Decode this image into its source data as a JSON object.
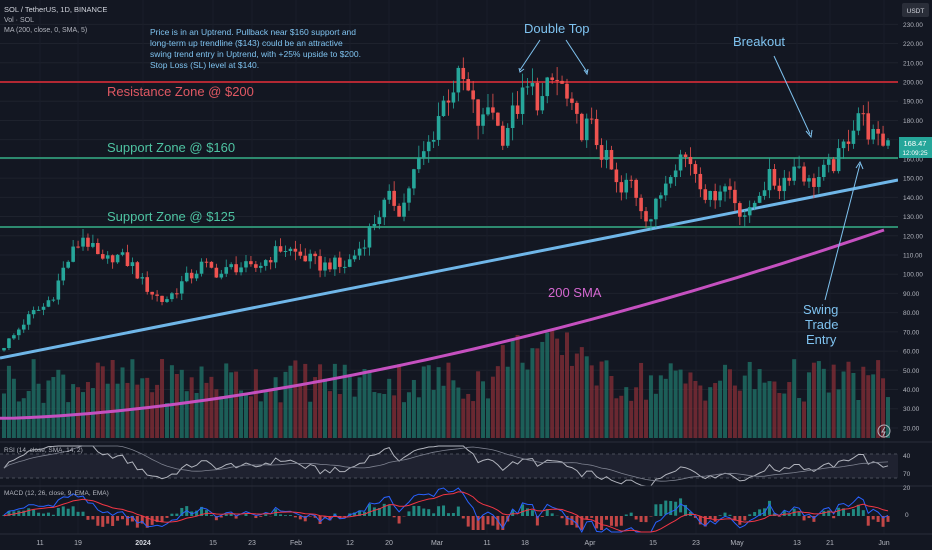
{
  "header": {
    "symbol_line": "SOL / TetherUS, 1D, BINANCE",
    "volume_line": "Vol · SOL",
    "ma_line": "MA (200, close, 0, SMA, 5)",
    "currency": "USDT"
  },
  "annotation_note": {
    "lines": [
      "Price is in an Uptrend. Pullback near $160 support and",
      "long-term up trendline ($143) could be an attractive",
      "swing trend entry in Uptrend, with +25% upside to $200.",
      "Stop Loss (SL) level at $140."
    ]
  },
  "labels": {
    "double_top": "Double Top",
    "breakout": "Breakout",
    "resistance_200": "Resistance Zone @ $200",
    "support_160": "Support Zone @ $160",
    "support_125": "Support Zone @ $125",
    "sma_200": "200 SMA",
    "swing_entry": [
      "Swing",
      "Trade",
      "Entry"
    ]
  },
  "price_badge": {
    "price": "168.47",
    "countdown": "12:09:25"
  },
  "indicators": {
    "rsi_label": "RSI (14, close, SMA, 14, 2)",
    "macd_label": "MACD (12, 26, close, 9, EMA, EMA)"
  },
  "colors": {
    "background": "#131722",
    "up": "#26a69a",
    "down": "#ef5350",
    "resistance": "#b22833",
    "support": "#2d8a6f",
    "trendline": "#6fb6e8",
    "sma": "#c550c0",
    "annotation_text": "#7fc3f0",
    "rsi_line": "#b2b5be",
    "macd_line": "#2962ff",
    "signal_line": "#f23645"
  },
  "chart_data": {
    "type": "candlestick",
    "price_axis": {
      "ticks": [
        20,
        30,
        40,
        50,
        60,
        70,
        80,
        90,
        100,
        110,
        120,
        130,
        140,
        150,
        160,
        170,
        180,
        190,
        200,
        210,
        220,
        230
      ],
      "ylim": [
        15,
        240
      ]
    },
    "x_axis_labels": [
      "11",
      "19",
      "2024",
      "15",
      "23",
      "Feb",
      "12",
      "20",
      "Mar",
      "11",
      "18",
      "Apr",
      "15",
      "23",
      "May",
      "13",
      "21",
      "Jun"
    ],
    "horizontal_levels": [
      {
        "name": "Resistance Zone @ $200",
        "value": 200
      },
      {
        "name": "Support Zone @ $160",
        "value": 160
      },
      {
        "name": "Support Zone @ $125",
        "value": 125
      }
    ],
    "trendline": {
      "from_value": 56,
      "to_value": 150
    },
    "sma_200": {
      "from_value": 25,
      "to_value": 123
    },
    "rsi": {
      "ticks": [
        40.0,
        70.0
      ]
    },
    "macd": {
      "ticks": [
        20.0,
        0.0
      ]
    },
    "close_points": [
      [
        60,
        63
      ],
      [
        62,
        68
      ],
      [
        62,
        75
      ],
      [
        64,
        80
      ],
      [
        63,
        83
      ],
      [
        65,
        90
      ],
      [
        64,
        103
      ],
      [
        66,
        112
      ],
      [
        68,
        120
      ],
      [
        64,
        112
      ],
      [
        67,
        105
      ],
      [
        68,
        110
      ],
      [
        70,
        108
      ],
      [
        69,
        104
      ],
      [
        72,
        95
      ],
      [
        74,
        90
      ],
      [
        73,
        86
      ],
      [
        75,
        90
      ],
      [
        76,
        96
      ],
      [
        74,
        100
      ],
      [
        76,
        105
      ],
      [
        78,
        102
      ],
      [
        80,
        100
      ],
      [
        80,
        104
      ],
      [
        82,
        104
      ],
      [
        83,
        102
      ],
      [
        85,
        106
      ],
      [
        84,
        110
      ],
      [
        88,
        114
      ],
      [
        92,
        112
      ],
      [
        93,
        109
      ],
      [
        94,
        107
      ],
      [
        98,
        104
      ],
      [
        100,
        106
      ],
      [
        102,
        103
      ],
      [
        103,
        108
      ],
      [
        104,
        115
      ],
      [
        108,
        125
      ],
      [
        110,
        134
      ],
      [
        114,
        140
      ],
      [
        116,
        132
      ],
      [
        118,
        150
      ],
      [
        120,
        160
      ],
      [
        125,
        170
      ],
      [
        130,
        187
      ],
      [
        138,
        196
      ],
      [
        143,
        203
      ],
      [
        145,
        190
      ],
      [
        150,
        175
      ],
      [
        155,
        192
      ],
      [
        158,
        170
      ],
      [
        162,
        181
      ],
      [
        164,
        190
      ],
      [
        170,
        198
      ],
      [
        178,
        188
      ],
      [
        185,
        200
      ],
      [
        190,
        200
      ],
      [
        194,
        185
      ],
      [
        192,
        175
      ],
      [
        198,
        178
      ],
      [
        200,
        165
      ],
      [
        198,
        156
      ],
      [
        204,
        140
      ],
      [
        206,
        150
      ],
      [
        210,
        137
      ],
      [
        208,
        128
      ],
      [
        214,
        140
      ],
      [
        218,
        155
      ],
      [
        222,
        162
      ],
      [
        224,
        160
      ],
      [
        226,
        150
      ],
      [
        230,
        138
      ],
      [
        232,
        146
      ],
      [
        236,
        145
      ],
      [
        236,
        134
      ],
      [
        238,
        130
      ],
      [
        242,
        143
      ],
      [
        248,
        150
      ],
      [
        250,
        146
      ],
      [
        254,
        153
      ],
      [
        256,
        158
      ],
      [
        258,
        147
      ],
      [
        262,
        150
      ],
      [
        266,
        155
      ],
      [
        268,
        160
      ],
      [
        270,
        172
      ],
      [
        275,
        185
      ],
      [
        277,
        175
      ],
      [
        279,
        168
      ],
      [
        282,
        170
      ]
    ]
  }
}
